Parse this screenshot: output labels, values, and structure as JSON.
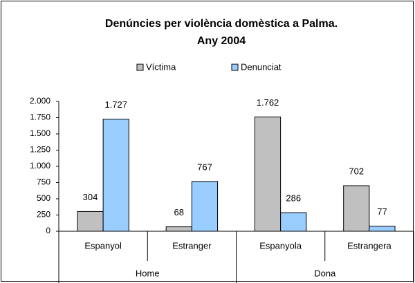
{
  "chart_data": {
    "type": "bar",
    "title": [
      "Denúncies per violència domèstica a Palma.",
      "Any 2004"
    ],
    "categories": [
      "Espanyol",
      "Estranger",
      "Espanyola",
      "Estrangera"
    ],
    "groups": [
      "Home",
      "Dona"
    ],
    "series": [
      {
        "name": "Víctima",
        "color": "#c0c0c0",
        "values": [
          304,
          68,
          1762,
          702
        ],
        "value_labels": [
          "304",
          "68",
          "1.762",
          "702"
        ]
      },
      {
        "name": "Denunciat",
        "color": "#99ccff",
        "values": [
          1727,
          767,
          286,
          77
        ],
        "value_labels": [
          "1.727",
          "767",
          "286",
          "77"
        ]
      }
    ],
    "ylim": [
      0,
      2000
    ],
    "yticks": [
      0,
      250,
      500,
      750,
      {
        "value": 1000,
        "label": "1.000"
      },
      {
        "value": 1250,
        "label": "1.250"
      },
      {
        "value": 1500,
        "label": "1.500"
      },
      {
        "value": 1750,
        "label": "1.750"
      },
      {
        "value": 2000,
        "label": "2.000"
      }
    ],
    "legend": "top",
    "grid": false
  }
}
